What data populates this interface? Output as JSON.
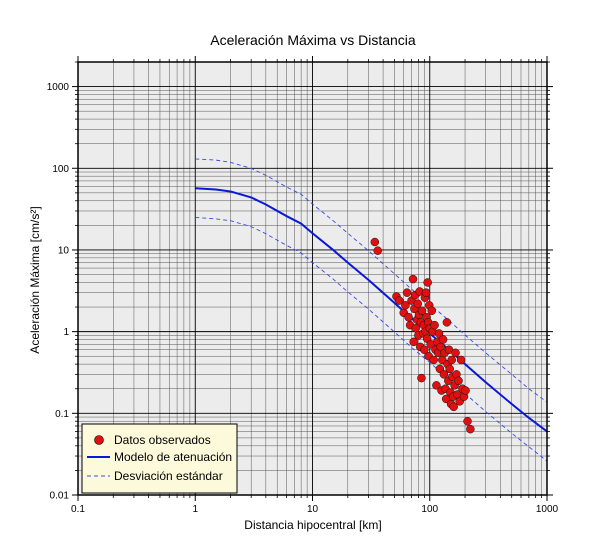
{
  "chart_data": {
    "type": "scatter",
    "title": "Aceleración Máxima vs Distancia",
    "xlabel": "Distancia hipocentral [km]",
    "ylabel": "Aceleración Máxima [cm/s²]",
    "x_scale": "log",
    "y_scale": "log",
    "xlim": [
      0.1,
      1000
    ],
    "ylim": [
      0.01,
      2000
    ],
    "x_tick_labels": [
      "0.1",
      "1",
      "10",
      "100",
      "1000"
    ],
    "y_tick_labels": [
      "0.01",
      "0.1",
      "1",
      "10",
      "100",
      "1000"
    ],
    "grid": true,
    "legend_position": "bottom-left",
    "colors": {
      "plot_bg": "#ececec",
      "observed": "#e01010",
      "model": "#0a18d8",
      "stddev": "#3848e8",
      "legend_bg": "#fdfadc"
    },
    "series": [
      {
        "name": "Datos observados",
        "kind": "points",
        "points": [
          [
            34,
            12.5
          ],
          [
            36,
            9.8
          ],
          [
            52,
            2.7
          ],
          [
            55,
            2.4
          ],
          [
            60,
            1.7
          ],
          [
            62,
            2.1
          ],
          [
            64,
            3.0
          ],
          [
            66,
            1.5
          ],
          [
            68,
            1.2
          ],
          [
            70,
            2.4
          ],
          [
            72,
            4.4
          ],
          [
            73,
            0.75
          ],
          [
            74,
            1.9
          ],
          [
            75,
            2.8
          ],
          [
            76,
            1.1
          ],
          [
            78,
            1.4
          ],
          [
            79,
            2.2
          ],
          [
            80,
            0.9
          ],
          [
            81,
            1.6
          ],
          [
            82,
            3.1
          ],
          [
            83,
            0.65
          ],
          [
            84,
            1.3
          ],
          [
            85,
            0.27
          ],
          [
            86,
            1.8
          ],
          [
            88,
            0.95
          ],
          [
            89,
            1.2
          ],
          [
            90,
            0.6
          ],
          [
            91,
            2.6
          ],
          [
            92,
            1.0
          ],
          [
            93,
            3.0
          ],
          [
            94,
            1.5
          ],
          [
            95,
            0.82
          ],
          [
            96,
            4.0
          ],
          [
            97,
            1.3
          ],
          [
            98,
            0.5
          ],
          [
            99,
            2.1
          ],
          [
            100,
            1.1
          ],
          [
            102,
            0.7
          ],
          [
            104,
            1.8
          ],
          [
            106,
            1.0
          ],
          [
            108,
            0.45
          ],
          [
            110,
            1.2
          ],
          [
            112,
            0.6
          ],
          [
            114,
            0.22
          ],
          [
            116,
            0.75
          ],
          [
            118,
            0.55
          ],
          [
            120,
            0.95
          ],
          [
            122,
            0.35
          ],
          [
            124,
            0.65
          ],
          [
            126,
            0.19
          ],
          [
            128,
            0.45
          ],
          [
            130,
            0.8
          ],
          [
            132,
            0.3
          ],
          [
            134,
            0.55
          ],
          [
            136,
            0.2
          ],
          [
            138,
            0.15
          ],
          [
            140,
            1.3
          ],
          [
            142,
            0.4
          ],
          [
            144,
            0.25
          ],
          [
            146,
            0.6
          ],
          [
            148,
            0.35
          ],
          [
            150,
            0.18
          ],
          [
            152,
            0.13
          ],
          [
            154,
            0.45
          ],
          [
            156,
            0.28
          ],
          [
            158,
            0.16
          ],
          [
            160,
            0.12
          ],
          [
            163,
            0.22
          ],
          [
            166,
            0.55
          ],
          [
            169,
            0.3
          ],
          [
            172,
            0.17
          ],
          [
            176,
            0.25
          ],
          [
            180,
            0.14
          ],
          [
            185,
            0.45
          ],
          [
            190,
            0.2
          ],
          [
            196,
            0.16
          ],
          [
            202,
            0.19
          ],
          [
            210,
            0.08
          ],
          [
            222,
            0.064
          ]
        ]
      },
      {
        "name": "Modelo de atenuación",
        "kind": "line",
        "points": [
          [
            1,
            57
          ],
          [
            1.5,
            55
          ],
          [
            2,
            52
          ],
          [
            3,
            44
          ],
          [
            4,
            36
          ],
          [
            6,
            26
          ],
          [
            8,
            21
          ],
          [
            10,
            16
          ],
          [
            15,
            10
          ],
          [
            20,
            7
          ],
          [
            30,
            4.3
          ],
          [
            50,
            2.25
          ],
          [
            70,
            1.45
          ],
          [
            100,
            0.95
          ],
          [
            150,
            0.58
          ],
          [
            200,
            0.4
          ],
          [
            300,
            0.24
          ],
          [
            500,
            0.13
          ],
          [
            700,
            0.088
          ],
          [
            1000,
            0.06
          ]
        ]
      },
      {
        "name": "Desviación estándar",
        "kind": "dashed",
        "lines": [
          [
            [
              1,
              130
            ],
            [
              1.5,
              126
            ],
            [
              2,
              118
            ],
            [
              3,
              100
            ],
            [
              4,
              82
            ],
            [
              6,
              59
            ],
            [
              8,
              48
            ],
            [
              10,
              36.5
            ],
            [
              15,
              22.8
            ],
            [
              20,
              16
            ],
            [
              30,
              9.8
            ],
            [
              50,
              5.1
            ],
            [
              70,
              3.3
            ],
            [
              100,
              2.17
            ],
            [
              150,
              1.32
            ],
            [
              200,
              0.91
            ],
            [
              300,
              0.55
            ],
            [
              500,
              0.3
            ],
            [
              700,
              0.2
            ],
            [
              1000,
              0.137
            ]
          ],
          [
            [
              1,
              25
            ],
            [
              1.5,
              24
            ],
            [
              2,
              22.8
            ],
            [
              3,
              19.3
            ],
            [
              4,
              15.8
            ],
            [
              6,
              11.4
            ],
            [
              8,
              9.2
            ],
            [
              10,
              7.0
            ],
            [
              15,
              4.4
            ],
            [
              20,
              3.07
            ],
            [
              30,
              1.89
            ],
            [
              50,
              0.99
            ],
            [
              70,
              0.64
            ],
            [
              100,
              0.42
            ],
            [
              150,
              0.25
            ],
            [
              200,
              0.175
            ],
            [
              300,
              0.105
            ],
            [
              500,
              0.057
            ],
            [
              700,
              0.039
            ],
            [
              1000,
              0.026
            ]
          ]
        ]
      }
    ]
  }
}
